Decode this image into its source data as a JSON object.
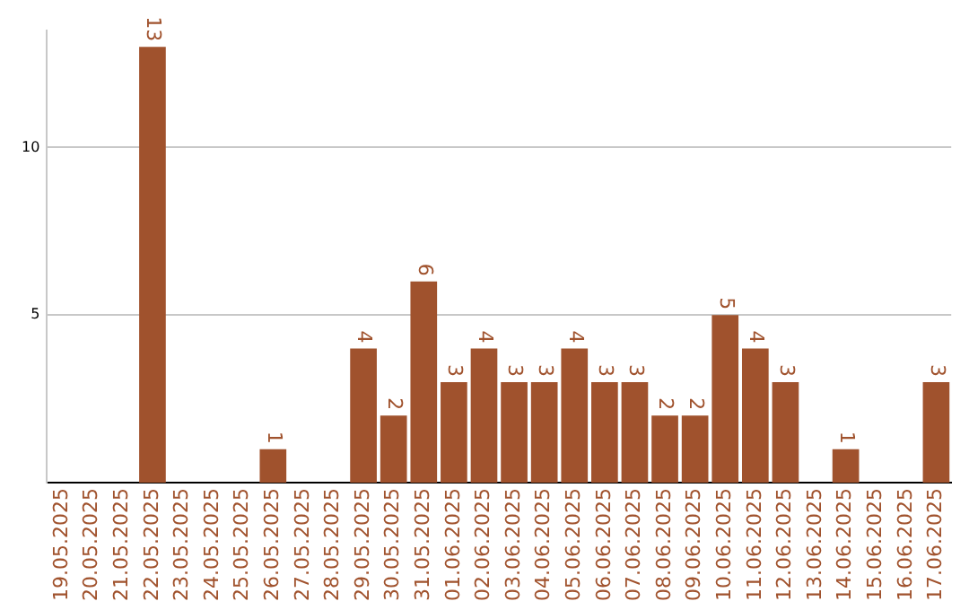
{
  "chart_data": {
    "type": "bar",
    "categories": [
      "19.05.2025",
      "20.05.2025",
      "21.05.2025",
      "22.05.2025",
      "23.05.2025",
      "24.05.2025",
      "25.05.2025",
      "26.05.2025",
      "27.05.2025",
      "28.05.2025",
      "29.05.2025",
      "30.05.2025",
      "31.05.2025",
      "01.06.2025",
      "02.06.2025",
      "03.06.2025",
      "04.06.2025",
      "05.06.2025",
      "06.06.2025",
      "07.06.2025",
      "08.06.2025",
      "09.06.2025",
      "10.06.2025",
      "11.06.2025",
      "12.06.2025",
      "13.06.2025",
      "14.06.2025",
      "15.06.2025",
      "16.06.2025",
      "17.06.2025"
    ],
    "values": [
      0,
      0,
      0,
      13,
      0,
      0,
      0,
      1,
      0,
      0,
      4,
      2,
      6,
      3,
      4,
      3,
      3,
      4,
      3,
      3,
      2,
      2,
      5,
      4,
      3,
      0,
      1,
      0,
      0,
      3
    ],
    "value_labels": [
      null,
      null,
      null,
      "13",
      null,
      null,
      null,
      "1",
      null,
      null,
      "4",
      "2",
      "6",
      "3",
      "4",
      "3",
      "3",
      "4",
      "3",
      "3",
      "2",
      "2",
      "5",
      "4",
      "3",
      null,
      "1",
      null,
      null,
      "3"
    ],
    "color": "#a0522d",
    "ylim": [
      0,
      13.5
    ],
    "yticks": [
      5,
      10
    ],
    "grid": "y",
    "legend": false
  }
}
